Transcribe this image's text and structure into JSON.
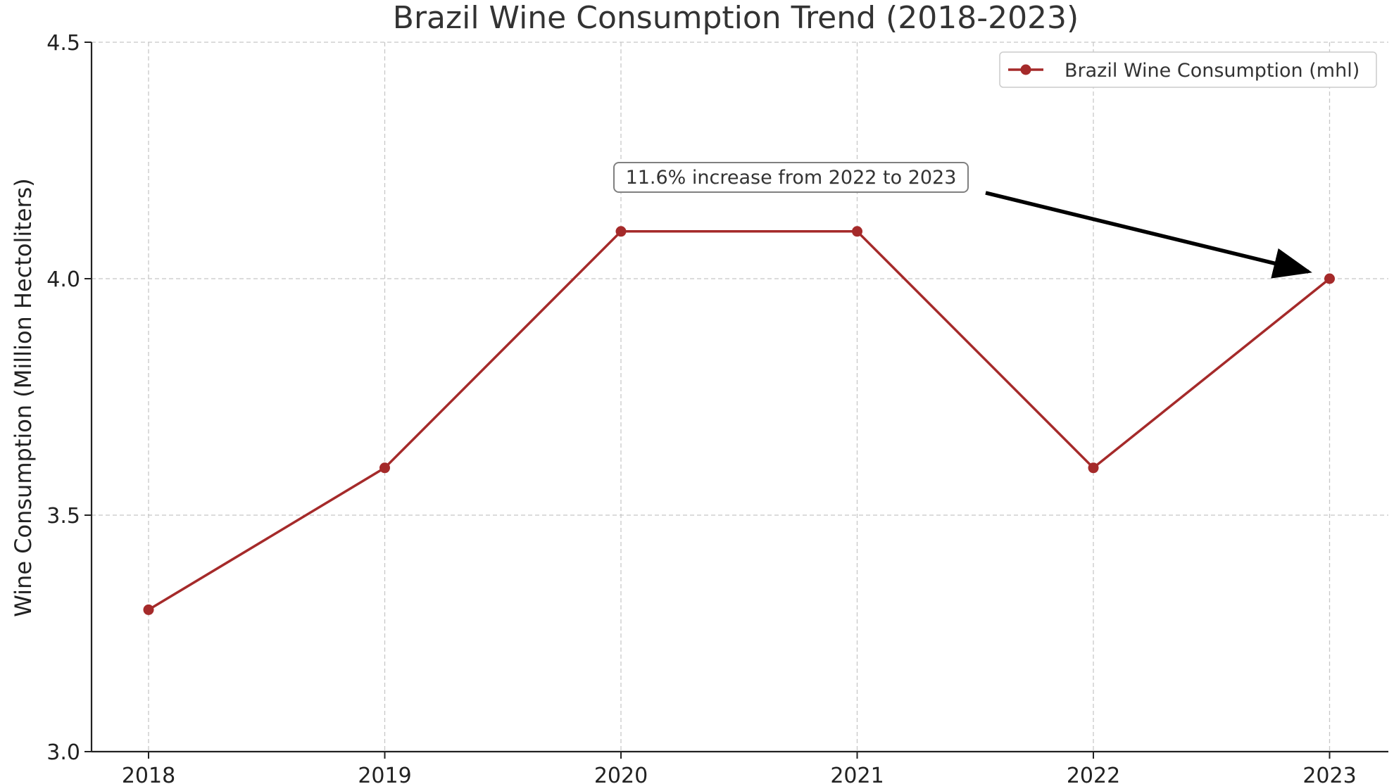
{
  "chart_data": {
    "type": "line",
    "title": "Brazil Wine Consumption Trend (2018-2023)",
    "xlabel": "",
    "ylabel": "Wine Consumption (Million Hectoliters)",
    "categories": [
      "2018",
      "2019",
      "2020",
      "2021",
      "2022",
      "2023"
    ],
    "series": [
      {
        "name": "Brazil Wine Consumption (mhl)",
        "values": [
          3.3,
          3.6,
          4.1,
          4.1,
          3.6,
          4.0
        ],
        "color": "#a52a2a"
      }
    ],
    "ylim": [
      3.0,
      4.5
    ],
    "yticks": [
      "3.0",
      "3.5",
      "4.0",
      "4.5"
    ],
    "grid": true,
    "legend_position": "top-right",
    "annotation": {
      "text": "11.6% increase from 2022 to 2023",
      "target_category": "2023",
      "target_value": 4.0
    }
  }
}
